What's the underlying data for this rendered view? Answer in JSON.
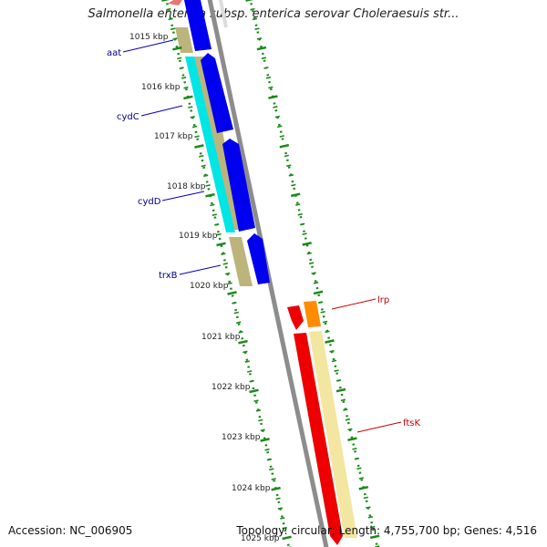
{
  "header": {
    "title": "Salmonella enterica subsp. enterica serovar Choleraesuis str..."
  },
  "footer": {
    "accession": "Accession: NC_006905",
    "summary": "Topology: circular; Length: 4,755,700 bp; Genes: 4,516"
  },
  "ruler": {
    "tick_labels": [
      "1015 kbp",
      "1016 kbp",
      "1017 kbp",
      "1018 kbp",
      "1019 kbp",
      "1020 kbp",
      "1021 kbp",
      "1022 kbp",
      "1023 kbp",
      "1024 kbp",
      "1025 kbp"
    ]
  },
  "genes": [
    {
      "name": "aat",
      "label_color": "#00008b"
    },
    {
      "name": "cydC",
      "label_color": "#00008b"
    },
    {
      "name": "cydD",
      "label_color": "#00008b"
    },
    {
      "name": "trxB",
      "label_color": "#00008b"
    },
    {
      "name": "lrp",
      "label_color": "#cc0000"
    },
    {
      "name": "ftsK",
      "label_color": "#cc0000"
    }
  ],
  "colors": {
    "backbone": "#8c8c8c",
    "cds_forward": "#0000ee",
    "cds_reverse": "#ee0000",
    "orange_feature": "#ff8c00",
    "khaki_track": "#bdb47c",
    "pale_track": "#f3e6a0",
    "cyan_track": "#00e5e5",
    "tick_green": "#1a8a1a"
  }
}
